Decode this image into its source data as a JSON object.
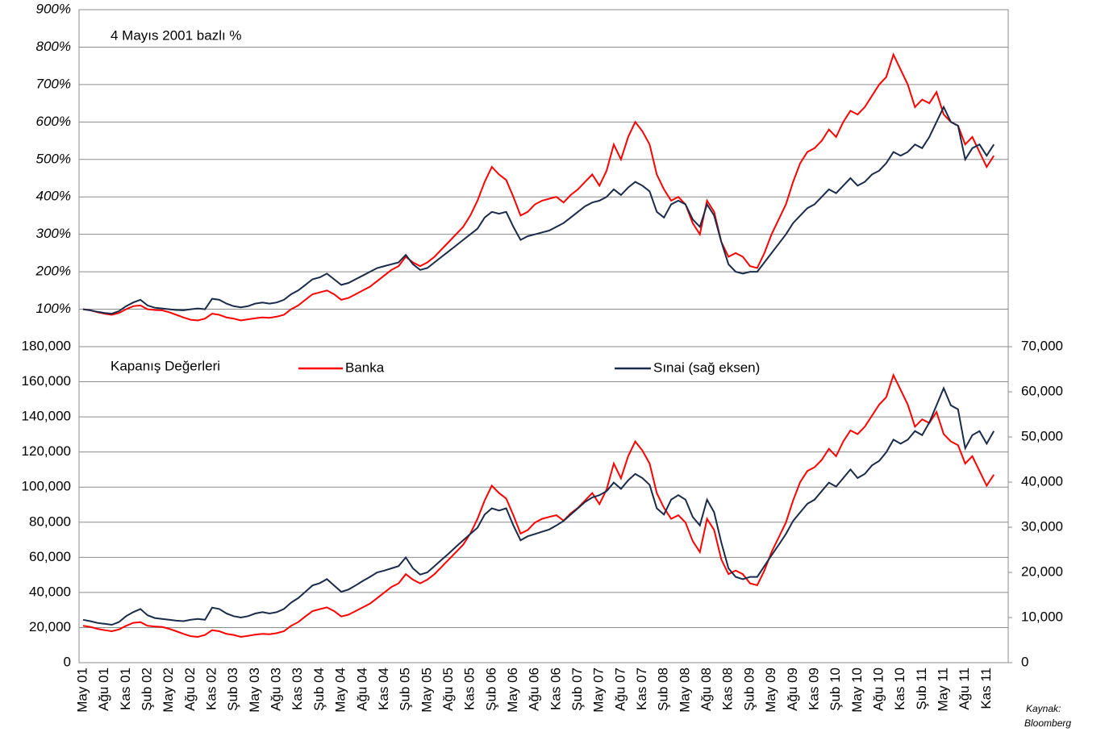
{
  "chart_data": [
    {
      "type": "line",
      "annotation": "4 Mayıs 2001 bazlı %",
      "ylim": [
        0,
        900
      ],
      "yticks": [
        {
          "value": 100,
          "label": "100%"
        },
        {
          "value": 200,
          "label": "200%"
        },
        {
          "value": 300,
          "label": "300%"
        },
        {
          "value": 400,
          "label": "400%"
        },
        {
          "value": 500,
          "label": "500%"
        },
        {
          "value": 600,
          "label": "600%"
        },
        {
          "value": 700,
          "label": "700%"
        },
        {
          "value": 800,
          "label": "800%"
        },
        {
          "value": 900,
          "label": "900%"
        }
      ],
      "grid": true,
      "series": [
        {
          "color": "#ff0000",
          "values": [
            100,
            97,
            92,
            88,
            85,
            90,
            100,
            108,
            110,
            100,
            98,
            97,
            92,
            85,
            78,
            72,
            70,
            75,
            88,
            85,
            78,
            75,
            70,
            73,
            76,
            78,
            77,
            80,
            85,
            100,
            110,
            125,
            140,
            145,
            150,
            140,
            125,
            130,
            140,
            150,
            160,
            175,
            190,
            205,
            215,
            240,
            225,
            215,
            225,
            240,
            260,
            280,
            300,
            320,
            350,
            390,
            440,
            480,
            460,
            445,
            400,
            350,
            360,
            380,
            390,
            395,
            400,
            385,
            405,
            420,
            440,
            460,
            430,
            470,
            540,
            500,
            560,
            600,
            575,
            540,
            460,
            420,
            390,
            400,
            380,
            330,
            300,
            390,
            360,
            280,
            240,
            250,
            240,
            215,
            210,
            250,
            300,
            340,
            380,
            440,
            490,
            520,
            530,
            550,
            580,
            560,
            600,
            630,
            620,
            640,
            670,
            700,
            720,
            780,
            740,
            700,
            640,
            660,
            650,
            680,
            620,
            600,
            590,
            540,
            560,
            520,
            480,
            510
          ]
        },
        {
          "color": "#1a2b4a",
          "values": [
            100,
            97,
            93,
            90,
            88,
            95,
            108,
            118,
            125,
            110,
            104,
            102,
            100,
            98,
            97,
            100,
            102,
            100,
            128,
            125,
            115,
            108,
            105,
            108,
            115,
            118,
            115,
            118,
            125,
            140,
            150,
            165,
            180,
            185,
            195,
            180,
            165,
            170,
            180,
            190,
            200,
            210,
            215,
            220,
            225,
            245,
            220,
            205,
            210,
            225,
            240,
            255,
            270,
            285,
            300,
            315,
            345,
            360,
            355,
            360,
            320,
            285,
            295,
            300,
            305,
            310,
            320,
            330,
            345,
            360,
            375,
            385,
            390,
            400,
            420,
            405,
            425,
            440,
            430,
            415,
            360,
            345,
            380,
            390,
            380,
            340,
            320,
            380,
            350,
            280,
            220,
            200,
            195,
            200,
            200,
            225,
            250,
            275,
            300,
            330,
            350,
            370,
            380,
            400,
            420,
            410,
            430,
            450,
            430,
            440,
            460,
            470,
            490,
            520,
            510,
            520,
            540,
            530,
            560,
            600,
            640,
            600,
            590,
            500,
            530,
            540,
            510,
            540
          ]
        }
      ]
    },
    {
      "type": "line",
      "legend_title": "Kapanış Değerleri",
      "categories": [
        "May 01",
        null,
        null,
        "Ağu 01",
        null,
        null,
        "Kas 01",
        null,
        null,
        "Şub 02",
        null,
        null,
        "May 02",
        null,
        null,
        "Ağu 02",
        null,
        null,
        "Kas 02",
        null,
        null,
        "Şub 03",
        null,
        null,
        "May 03",
        null,
        null,
        "Ağu 03",
        null,
        null,
        "Kas 03",
        null,
        null,
        "Şub 04",
        null,
        null,
        "May 04",
        null,
        null,
        "Ağu 04",
        null,
        null,
        "Kas 04",
        null,
        null,
        "Şub 05",
        null,
        null,
        "May 05",
        null,
        null,
        "Ağu 05",
        null,
        null,
        "Kas 05",
        null,
        null,
        "Şub 06",
        null,
        null,
        "May 06",
        null,
        null,
        "Ağu 06",
        null,
        null,
        "Kas 06",
        null,
        null,
        "Şub 07",
        null,
        null,
        "May 07",
        null,
        null,
        "Ağu 07",
        null,
        null,
        "Kas 07",
        null,
        null,
        "Şub 08",
        null,
        null,
        "May 08",
        null,
        null,
        "Ağu 08",
        null,
        null,
        "Kas 08",
        null,
        null,
        "Şub 09",
        null,
        null,
        "May 09",
        null,
        null,
        "Ağu 09",
        null,
        null,
        "Kas 09",
        null,
        null,
        "Şub 10",
        null,
        null,
        "May 10",
        null,
        null,
        "Ağu 10",
        null,
        null,
        "Kas 10",
        null,
        null,
        "Şub 11",
        null,
        null,
        "May 11",
        null,
        null,
        "Ağu 11",
        null,
        null,
        "Kas 11",
        null
      ],
      "ylim": [
        0,
        180000
      ],
      "yticks": [
        0,
        {
          "value": 20000,
          "label": "20,000"
        },
        {
          "value": 40000,
          "label": "40,000"
        },
        {
          "value": 60000,
          "label": "60,000"
        },
        {
          "value": 80000,
          "label": "80,000"
        },
        {
          "value": 100000,
          "label": "100,000"
        },
        {
          "value": 120000,
          "label": "120,000"
        },
        {
          "value": 140000,
          "label": "140,000"
        },
        {
          "value": 160000,
          "label": "160,000"
        },
        {
          "value": 180000,
          "label": "180,000"
        }
      ],
      "y2lim": [
        0,
        70000
      ],
      "y2ticks": [
        0,
        {
          "value": 10000,
          "label": "10,000"
        },
        {
          "value": 20000,
          "label": "20,000"
        },
        {
          "value": 30000,
          "label": "30,000"
        },
        {
          "value": 40000,
          "label": "40,000"
        },
        {
          "value": 50000,
          "label": "50,000"
        },
        {
          "value": 60000,
          "label": "60,000"
        },
        {
          "value": 70000,
          "label": "70,000"
        }
      ],
      "grid": true,
      "series": [
        {
          "name": "Banka",
          "color": "#ff0000",
          "values": [
            21000,
            20400,
            19300,
            18500,
            17900,
            18900,
            21000,
            22700,
            23100,
            21000,
            20600,
            20400,
            19300,
            17900,
            16400,
            15100,
            14700,
            15800,
            18500,
            17900,
            16400,
            15800,
            14700,
            15300,
            16000,
            16400,
            16200,
            16800,
            17900,
            21000,
            23100,
            26300,
            29400,
            30500,
            31500,
            29400,
            26300,
            27300,
            29400,
            31500,
            33600,
            36800,
            39900,
            43100,
            45200,
            50400,
            47300,
            45200,
            47300,
            50400,
            54600,
            58800,
            63000,
            67200,
            73500,
            81900,
            92400,
            100800,
            96600,
            93500,
            84000,
            73500,
            75600,
            79800,
            81900,
            83000,
            84000,
            80900,
            85100,
            88200,
            92400,
            96600,
            90300,
            98700,
            113400,
            105000,
            117600,
            126000,
            120800,
            113400,
            96600,
            88200,
            81900,
            84000,
            79800,
            69300,
            63000,
            81900,
            75600,
            58800,
            50400,
            52500,
            50400,
            45200,
            44100,
            52500,
            63000,
            71400,
            79800,
            92400,
            102900,
            109200,
            111300,
            115500,
            121800,
            117600,
            126000,
            132300,
            130200,
            134400,
            140700,
            147000,
            151200,
            163800,
            155400,
            147000,
            134400,
            138600,
            136500,
            142800,
            130200,
            126000,
            123900,
            113400,
            117600,
            109200,
            100800,
            107100
          ]
        },
        {
          "name": "Sınai (sağ eksen)",
          "color": "#1a2b4a",
          "axis": "y2",
          "values": [
            9500,
            9200,
            8800,
            8600,
            8400,
            9000,
            10300,
            11200,
            11900,
            10500,
            9900,
            9700,
            9500,
            9300,
            9200,
            9500,
            9700,
            9500,
            12200,
            11900,
            10900,
            10300,
            10000,
            10300,
            10900,
            11200,
            10900,
            11200,
            11900,
            13300,
            14300,
            15700,
            17100,
            17600,
            18500,
            17100,
            15700,
            16200,
            17100,
            18100,
            19000,
            20000,
            20400,
            20900,
            21400,
            23300,
            20900,
            19500,
            20000,
            21400,
            22800,
            24200,
            25700,
            27100,
            28500,
            29900,
            32800,
            34200,
            33700,
            34200,
            30400,
            27100,
            28000,
            28500,
            29000,
            29500,
            30400,
            31400,
            32800,
            34200,
            35600,
            36600,
            37100,
            38000,
            39900,
            38500,
            40400,
            41800,
            40900,
            39400,
            34200,
            32800,
            36100,
            37100,
            36100,
            32300,
            30400,
            36100,
            33300,
            26600,
            20900,
            19000,
            18500,
            19000,
            19000,
            21400,
            23800,
            26100,
            28500,
            31400,
            33300,
            35200,
            36100,
            38000,
            39900,
            39000,
            40900,
            42800,
            40900,
            41800,
            43700,
            44700,
            46600,
            49400,
            48500,
            49400,
            51300,
            50400,
            53200,
            57000,
            60800,
            57000,
            56100,
            47500,
            50400,
            51300,
            48500,
            51300
          ]
        }
      ]
    }
  ],
  "source": [
    "Kaynak:",
    "Bloomberg"
  ]
}
